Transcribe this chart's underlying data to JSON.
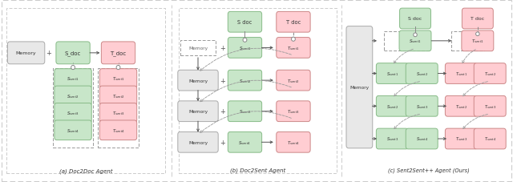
{
  "bg_color": "#ffffff",
  "green_fill": "#c8e6c9",
  "green_edge": "#88bb88",
  "red_fill": "#ffcdd2",
  "red_edge": "#cc8888",
  "gray_fill": "#e8e8e8",
  "gray_edge": "#aaaaaa",
  "arrow_color": "#555555",
  "dash_color": "#999999",
  "title_a": "(a) Doc2Doc Agent",
  "title_b": "(b) Doc2Sent Agent",
  "title_c": "(c) Sent2Sent++ Agent (Ours)"
}
